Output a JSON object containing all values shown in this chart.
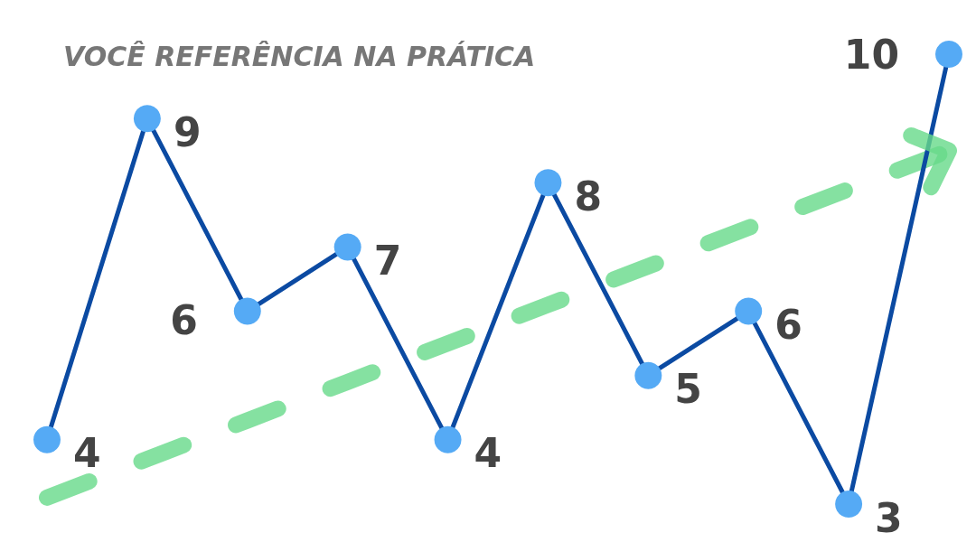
{
  "chart_data": {
    "type": "line",
    "title": "VOCÊ REFERÊNCIA NA PRÁTICA",
    "categories": [
      null,
      null,
      null,
      null,
      null,
      null,
      null,
      null,
      null,
      null
    ],
    "series": [
      {
        "color": "#0b4aa2",
        "values": [
          4,
          9,
          6,
          7,
          4,
          8,
          5,
          6,
          3,
          10
        ],
        "value_labels": [
          "4",
          "9",
          "6",
          "7",
          "4",
          "8",
          "5",
          "6",
          "3",
          "10"
        ]
      },
      {
        "color": "#66d98a",
        "line_style": "dashed",
        "marker": "none",
        "values": [
          3.1,
          3.7,
          4.3,
          4.9,
          5.5,
          6.1,
          6.7,
          7.3,
          7.9,
          8.5
        ]
      }
    ],
    "marker": "circle",
    "line_style": "solid",
    "grid": false
  }
}
